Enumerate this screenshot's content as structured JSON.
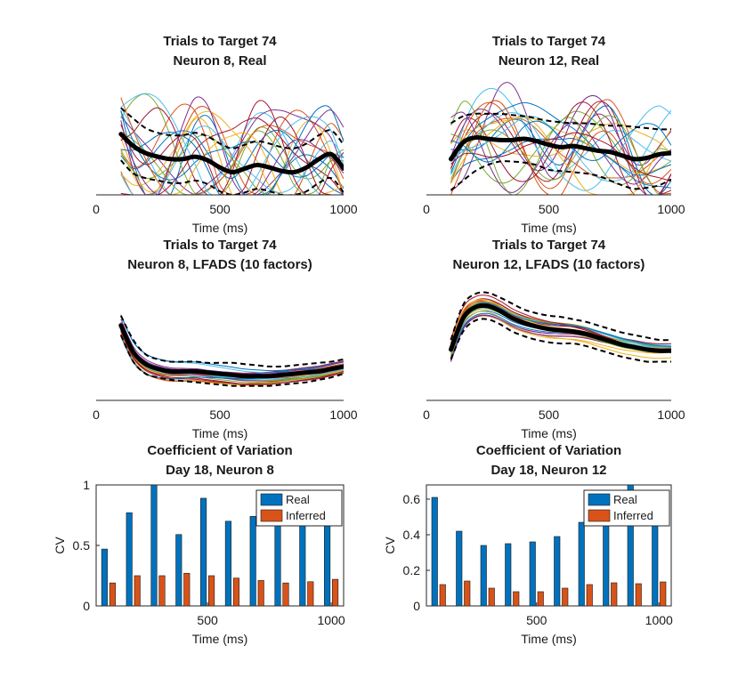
{
  "colors": {
    "real": "#0072BD",
    "inferred": "#D95319",
    "mean": "#000000",
    "sd": "#000000",
    "trial_palette": [
      "#0072BD",
      "#D95319",
      "#EDB120",
      "#7E2F8E",
      "#77AC30",
      "#4DBEEE",
      "#A2142F"
    ]
  },
  "chart_data": [
    {
      "id": "n8_real",
      "type": "line",
      "title": [
        "Trials to Target 74",
        "Neuron 8, Real"
      ],
      "xlabel": "Time (ms)",
      "xlim": [
        0,
        1000
      ],
      "xticks": [
        0,
        500,
        1000
      ],
      "ylim": [
        0,
        1
      ],
      "show_y_axis": false,
      "x": [
        100,
        150,
        200,
        250,
        300,
        350,
        400,
        450,
        500,
        550,
        600,
        650,
        700,
        750,
        800,
        850,
        900,
        950,
        1000
      ],
      "mean": [
        0.51,
        0.41,
        0.35,
        0.32,
        0.3,
        0.3,
        0.32,
        0.29,
        0.23,
        0.19,
        0.22,
        0.25,
        0.23,
        0.2,
        0.19,
        0.23,
        0.3,
        0.34,
        0.22
      ],
      "sd_upper": [
        0.73,
        0.64,
        0.56,
        0.52,
        0.5,
        0.5,
        0.52,
        0.49,
        0.43,
        0.39,
        0.42,
        0.45,
        0.43,
        0.4,
        0.39,
        0.43,
        0.5,
        0.54,
        0.42
      ],
      "sd_lower": [
        0.29,
        0.18,
        0.14,
        0.12,
        0.1,
        0.1,
        0.12,
        0.09,
        0.03,
        0.0,
        0.02,
        0.05,
        0.03,
        0.0,
        0.0,
        0.03,
        0.1,
        0.14,
        0.02
      ],
      "trials": {
        "count": 22,
        "seed": 8,
        "amplitude": 0.42,
        "smooth": false
      }
    },
    {
      "id": "n12_real",
      "type": "line",
      "title": [
        "Trials to Target 74",
        "Neuron 12, Real"
      ],
      "xlabel": "Time (ms)",
      "xlim": [
        0,
        1000
      ],
      "xticks": [
        0,
        500,
        1000
      ],
      "ylim": [
        0,
        1
      ],
      "show_y_axis": false,
      "x": [
        100,
        150,
        200,
        250,
        300,
        350,
        400,
        450,
        500,
        550,
        600,
        650,
        700,
        750,
        800,
        850,
        900,
        950,
        1000
      ],
      "mean": [
        0.3,
        0.44,
        0.48,
        0.47,
        0.46,
        0.46,
        0.47,
        0.45,
        0.42,
        0.4,
        0.41,
        0.39,
        0.37,
        0.36,
        0.33,
        0.3,
        0.31,
        0.34,
        0.35
      ],
      "sd_upper": [
        0.6,
        0.66,
        0.68,
        0.68,
        0.68,
        0.67,
        0.66,
        0.64,
        0.62,
        0.61,
        0.6,
        0.6,
        0.59,
        0.58,
        0.58,
        0.57,
        0.56,
        0.55,
        0.55
      ],
      "sd_lower": [
        0.04,
        0.12,
        0.2,
        0.25,
        0.28,
        0.28,
        0.27,
        0.25,
        0.21,
        0.2,
        0.19,
        0.18,
        0.16,
        0.12,
        0.08,
        0.05,
        0.06,
        0.08,
        0.13
      ],
      "trials": {
        "count": 22,
        "seed": 12,
        "amplitude": 0.38,
        "smooth": false
      }
    },
    {
      "id": "n8_lfads",
      "type": "line",
      "title": [
        "Trials to Target 74",
        "Neuron 8, LFADS (10 factors)"
      ],
      "xlabel": "Time (ms)",
      "xlim": [
        0,
        1000
      ],
      "xticks": [
        0,
        500,
        1000
      ],
      "ylim": [
        0,
        1
      ],
      "show_y_axis": false,
      "x": [
        100,
        150,
        200,
        250,
        300,
        350,
        400,
        450,
        500,
        550,
        600,
        650,
        700,
        750,
        800,
        850,
        900,
        950,
        1000
      ],
      "mean": [
        0.62,
        0.4,
        0.3,
        0.26,
        0.24,
        0.24,
        0.24,
        0.23,
        0.22,
        0.21,
        0.2,
        0.2,
        0.2,
        0.21,
        0.22,
        0.23,
        0.24,
        0.26,
        0.28
      ],
      "sd_upper": [
        0.7,
        0.5,
        0.38,
        0.34,
        0.32,
        0.32,
        0.32,
        0.31,
        0.31,
        0.31,
        0.3,
        0.29,
        0.28,
        0.28,
        0.29,
        0.3,
        0.31,
        0.32,
        0.34
      ],
      "sd_lower": [
        0.54,
        0.32,
        0.22,
        0.19,
        0.17,
        0.16,
        0.15,
        0.14,
        0.13,
        0.12,
        0.12,
        0.12,
        0.12,
        0.13,
        0.14,
        0.15,
        0.17,
        0.19,
        0.22
      ],
      "trials": {
        "count": 22,
        "seed": 81,
        "amplitude": 0.09,
        "smooth": true
      }
    },
    {
      "id": "n12_lfads",
      "type": "line",
      "title": [
        "Trials to Target 74",
        "Neuron 12, LFADS (10 factors)"
      ],
      "xlabel": "Time (ms)",
      "xlim": [
        0,
        1000
      ],
      "xticks": [
        0,
        500,
        1000
      ],
      "ylim": [
        0,
        1
      ],
      "show_y_axis": false,
      "x": [
        100,
        150,
        200,
        250,
        300,
        350,
        400,
        450,
        500,
        550,
        600,
        650,
        700,
        750,
        800,
        850,
        900,
        950,
        1000
      ],
      "mean": [
        0.42,
        0.68,
        0.77,
        0.78,
        0.74,
        0.68,
        0.64,
        0.61,
        0.59,
        0.58,
        0.57,
        0.55,
        0.52,
        0.49,
        0.46,
        0.44,
        0.42,
        0.41,
        0.41
      ],
      "sd_upper": [
        0.5,
        0.79,
        0.88,
        0.89,
        0.85,
        0.8,
        0.75,
        0.72,
        0.7,
        0.69,
        0.67,
        0.65,
        0.62,
        0.59,
        0.56,
        0.54,
        0.52,
        0.5,
        0.5
      ],
      "sd_lower": [
        0.34,
        0.57,
        0.66,
        0.67,
        0.63,
        0.57,
        0.53,
        0.5,
        0.48,
        0.47,
        0.47,
        0.45,
        0.42,
        0.39,
        0.36,
        0.34,
        0.32,
        0.32,
        0.32
      ],
      "trials": {
        "count": 22,
        "seed": 121,
        "amplitude": 0.1,
        "smooth": true
      }
    },
    {
      "id": "cv_n8",
      "type": "bar",
      "title": [
        "Coefficient of Variation",
        "Day 18, Neuron 8"
      ],
      "xlabel": "Time (ms)",
      "ylabel": "CV",
      "xlim": [
        50,
        1050
      ],
      "ylim": [
        0,
        1
      ],
      "xticks": [
        500,
        1000
      ],
      "yticks": [
        0,
        0.5,
        1
      ],
      "ytick_labels": [
        "0",
        "0.5",
        "1"
      ],
      "x": [
        100,
        200,
        300,
        400,
        500,
        600,
        700,
        800,
        900,
        1000
      ],
      "series": [
        {
          "name": "Real",
          "values": [
            0.47,
            0.77,
            1.0,
            0.59,
            0.89,
            0.7,
            0.74,
            0.7,
            0.72,
            0.66
          ]
        },
        {
          "name": "Inferred",
          "values": [
            0.19,
            0.25,
            0.25,
            0.27,
            0.25,
            0.23,
            0.21,
            0.19,
            0.2,
            0.22
          ]
        }
      ],
      "legend": "top-right"
    },
    {
      "id": "cv_n12",
      "type": "bar",
      "title": [
        "Coefficient of Variation",
        "Day 18, Neuron 12"
      ],
      "xlabel": "Time (ms)",
      "ylabel": "CV",
      "xlim": [
        50,
        1050
      ],
      "ylim": [
        0,
        0.68
      ],
      "xticks": [
        500,
        1000
      ],
      "yticks": [
        0,
        0.2,
        0.4,
        0.6
      ],
      "ytick_labels": [
        "0",
        "0.2",
        "0.4",
        "0.6"
      ],
      "x": [
        100,
        200,
        300,
        400,
        500,
        600,
        700,
        800,
        900,
        1000
      ],
      "series": [
        {
          "name": "Real",
          "values": [
            0.61,
            0.42,
            0.34,
            0.35,
            0.36,
            0.39,
            0.47,
            0.5,
            0.68,
            0.55
          ]
        },
        {
          "name": "Inferred",
          "values": [
            0.12,
            0.14,
            0.1,
            0.08,
            0.08,
            0.1,
            0.12,
            0.13,
            0.125,
            0.135
          ]
        }
      ],
      "legend": "top-right"
    }
  ]
}
